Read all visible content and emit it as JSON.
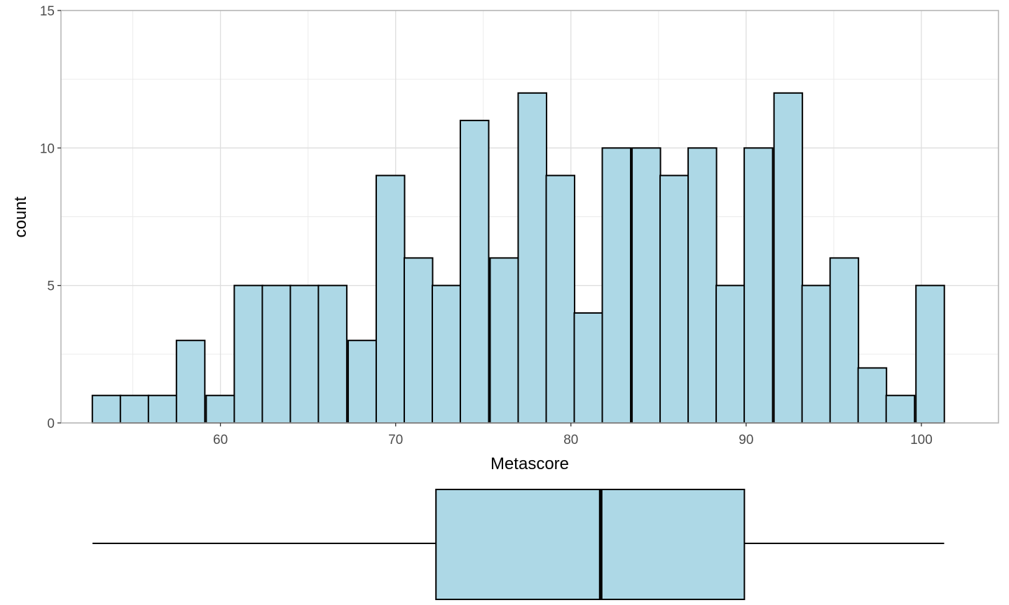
{
  "chart_data": [
    {
      "type": "bar",
      "subtype": "histogram",
      "xlabel": "Metascore",
      "ylabel": "count",
      "xlim": [
        50.9,
        104.4
      ],
      "ylim": [
        0,
        15
      ],
      "x_ticks": [
        60,
        70,
        80,
        90,
        100
      ],
      "y_ticks": [
        0,
        5,
        10,
        15
      ],
      "grid": true,
      "colors": {
        "fill": "#add8e6",
        "outline": "#000000",
        "grid": "#dedede",
        "panel_border": "#b3b3b3",
        "tick_text": "#4d4d4d"
      },
      "bin_width": 1.62,
      "bins": [
        {
          "x": 53.5,
          "count": 1
        },
        {
          "x": 55.1,
          "count": 1
        },
        {
          "x": 56.7,
          "count": 1
        },
        {
          "x": 58.3,
          "count": 3
        },
        {
          "x": 60.0,
          "count": 1
        },
        {
          "x": 61.6,
          "count": 5
        },
        {
          "x": 63.2,
          "count": 5
        },
        {
          "x": 64.8,
          "count": 5
        },
        {
          "x": 66.4,
          "count": 5
        },
        {
          "x": 68.1,
          "count": 3
        },
        {
          "x": 69.7,
          "count": 9
        },
        {
          "x": 71.3,
          "count": 6
        },
        {
          "x": 72.9,
          "count": 5
        },
        {
          "x": 74.5,
          "count": 11
        },
        {
          "x": 76.2,
          "count": 6
        },
        {
          "x": 77.8,
          "count": 12
        },
        {
          "x": 79.4,
          "count": 9
        },
        {
          "x": 81.0,
          "count": 4
        },
        {
          "x": 82.6,
          "count": 10
        },
        {
          "x": 84.3,
          "count": 10
        },
        {
          "x": 85.9,
          "count": 9
        },
        {
          "x": 87.5,
          "count": 10
        },
        {
          "x": 89.1,
          "count": 5
        },
        {
          "x": 90.7,
          "count": 10
        },
        {
          "x": 92.4,
          "count": 12
        },
        {
          "x": 94.0,
          "count": 5
        },
        {
          "x": 95.6,
          "count": 6
        },
        {
          "x": 97.2,
          "count": 2
        },
        {
          "x": 98.8,
          "count": 1
        },
        {
          "x": 100.5,
          "count": 5
        }
      ]
    },
    {
      "type": "boxplot",
      "orientation": "horizontal",
      "min": 52.7,
      "q1": 72.3,
      "median": 81.7,
      "q3": 89.9,
      "max": 101.3,
      "colors": {
        "fill": "#add8e6",
        "outline": "#000000"
      }
    }
  ]
}
